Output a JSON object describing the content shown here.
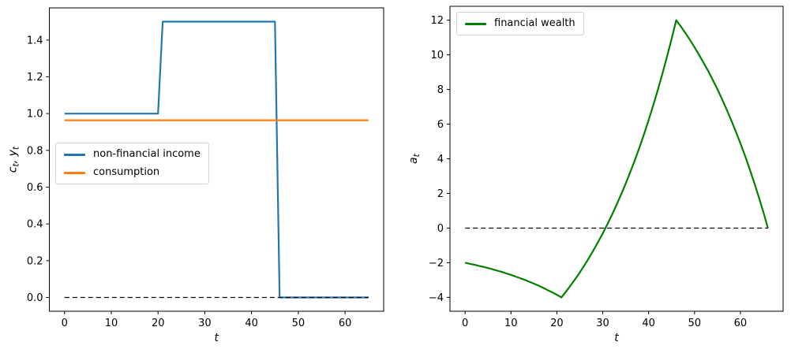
{
  "figure": {
    "background": "#ffffff"
  },
  "chart_data": [
    {
      "type": "line",
      "title": "",
      "xlabel": "t",
      "ylabel": "c_t, y_t",
      "xlim": [
        -3.25,
        68.25
      ],
      "ylim": [
        -0.075,
        1.575
      ],
      "grid": false,
      "legend_position": "center left",
      "xticks": [
        {
          "v": 0,
          "label": "0"
        },
        {
          "v": 10,
          "label": "10"
        },
        {
          "v": 20,
          "label": "20"
        },
        {
          "v": 30,
          "label": "30"
        },
        {
          "v": 40,
          "label": "40"
        },
        {
          "v": 50,
          "label": "50"
        },
        {
          "v": 60,
          "label": "60"
        }
      ],
      "yticks": [
        {
          "v": 0.0,
          "label": "0.0"
        },
        {
          "v": 0.2,
          "label": "0.2"
        },
        {
          "v": 0.4,
          "label": "0.4"
        },
        {
          "v": 0.6,
          "label": "0.6"
        },
        {
          "v": 0.8,
          "label": "0.8"
        },
        {
          "v": 1.0,
          "label": "1.0"
        },
        {
          "v": 1.2,
          "label": "1.2"
        },
        {
          "v": 1.4,
          "label": "1.4"
        }
      ],
      "series": [
        {
          "name": "non-financial income",
          "color": "#1f77b4",
          "dashed": false,
          "x": [
            0,
            20,
            21,
            45,
            46,
            65
          ],
          "values": [
            1.0,
            1.0,
            1.5,
            1.5,
            0.0,
            0.0
          ]
        },
        {
          "name": "consumption",
          "color": "#ff7f0e",
          "dashed": false,
          "x": [
            0,
            65
          ],
          "values": [
            0.964,
            0.964
          ]
        },
        {
          "name": "zero line",
          "color": "#000000",
          "dashed": true,
          "legend": false,
          "x": [
            0,
            65
          ],
          "values": [
            0.0,
            0.0
          ]
        }
      ]
    },
    {
      "type": "line",
      "title": "",
      "xlabel": "t",
      "ylabel": "a_t",
      "xlim": [
        -3.3,
        69.3
      ],
      "ylim": [
        -4.8,
        12.8
      ],
      "grid": false,
      "legend_position": "upper left",
      "xticks": [
        {
          "v": 0,
          "label": "0"
        },
        {
          "v": 10,
          "label": "10"
        },
        {
          "v": 20,
          "label": "20"
        },
        {
          "v": 30,
          "label": "30"
        },
        {
          "v": 40,
          "label": "40"
        },
        {
          "v": 50,
          "label": "50"
        },
        {
          "v": 60,
          "label": "60"
        }
      ],
      "yticks": [
        {
          "v": -4,
          "label": "−4"
        },
        {
          "v": -2,
          "label": "−2"
        },
        {
          "v": 0,
          "label": "0"
        },
        {
          "v": 2,
          "label": "2"
        },
        {
          "v": 4,
          "label": "4"
        },
        {
          "v": 6,
          "label": "6"
        },
        {
          "v": 8,
          "label": "8"
        },
        {
          "v": 10,
          "label": "10"
        },
        {
          "v": 12,
          "label": "12"
        }
      ],
      "series": [
        {
          "name": "financial wealth",
          "color": "#008000",
          "dashed": false,
          "values": [
            -2.0,
            -2.06,
            -2.11,
            -2.18,
            -2.24,
            -2.31,
            -2.38,
            -2.46,
            -2.53,
            -2.62,
            -2.7,
            -2.8,
            -2.89,
            -2.99,
            -3.1,
            -3.21,
            -3.32,
            -3.45,
            -3.58,
            -3.71,
            -3.85,
            -4.0,
            -3.66,
            -3.31,
            -2.94,
            -2.56,
            -2.15,
            -1.72,
            -1.27,
            -0.8,
            -0.3,
            0.22,
            0.76,
            1.34,
            1.94,
            2.57,
            3.23,
            3.93,
            4.66,
            5.43,
            6.24,
            7.09,
            7.97,
            8.91,
            9.89,
            10.92,
            12.0,
            11.64,
            11.26,
            10.86,
            10.44,
            9.99,
            9.53,
            9.05,
            8.53,
            8.0,
            7.44,
            6.84,
            6.22,
            5.57,
            4.89,
            4.17,
            3.41,
            2.62,
            1.79,
            0.92,
            0.0
          ]
        },
        {
          "name": "zero line",
          "color": "#000000",
          "dashed": true,
          "legend": false,
          "x": [
            0,
            66
          ],
          "values": [
            0.0,
            0.0
          ]
        }
      ]
    }
  ]
}
